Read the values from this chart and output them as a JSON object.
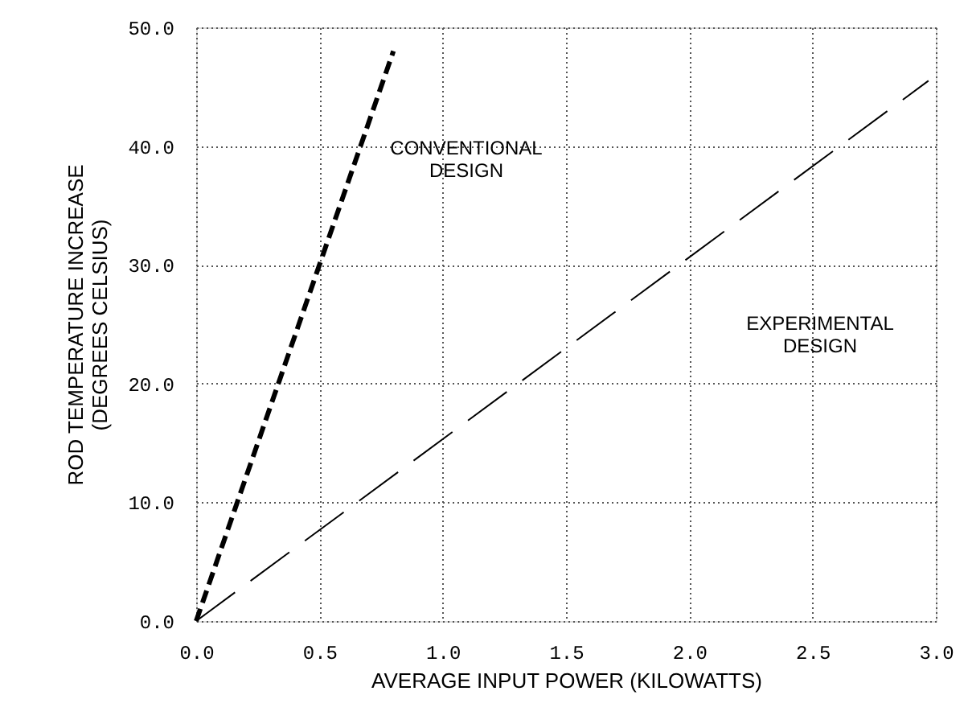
{
  "chart_data": {
    "type": "line",
    "xlabel": "AVERAGE INPUT POWER (KILOWATTS)",
    "ylabel": "ROD TEMPERATURE INCREASE\n(DEGREES CELSIUS)",
    "series": [
      {
        "color": "#000000",
        "line_style": "dashed",
        "x": [
          0.0,
          0.8
        ],
        "values": [
          0.0,
          48.0
        ]
      },
      {
        "color": "#000000",
        "line_style": "dashed",
        "x": [
          0.0,
          2.97
        ],
        "values": [
          0.0,
          45.5
        ]
      }
    ],
    "annotations": [
      "CONVENTIONAL\nDESIGN",
      "EXPERIMENTAL\nDESIGN"
    ],
    "xlim": [
      0,
      3
    ],
    "ylim": [
      0,
      50
    ],
    "xticks": [
      {
        "value": 0,
        "label": "0.0"
      },
      {
        "value": 0.5,
        "label": "0.5"
      },
      {
        "value": 1,
        "label": "1.0"
      },
      {
        "value": 1.5,
        "label": "1.5"
      },
      {
        "value": 2,
        "label": "2.0"
      },
      {
        "value": 2.5,
        "label": "2.5"
      },
      {
        "value": 3,
        "label": "3.0"
      }
    ],
    "yticks": [
      {
        "value": 0,
        "label": "0.0"
      },
      {
        "value": 10,
        "label": "10.0"
      },
      {
        "value": 20,
        "label": "20.0"
      },
      {
        "value": 30,
        "label": "30.0"
      },
      {
        "value": 40,
        "label": "40.0"
      },
      {
        "value": 50,
        "label": "50.0"
      }
    ],
    "grid": true,
    "marker": "none"
  }
}
